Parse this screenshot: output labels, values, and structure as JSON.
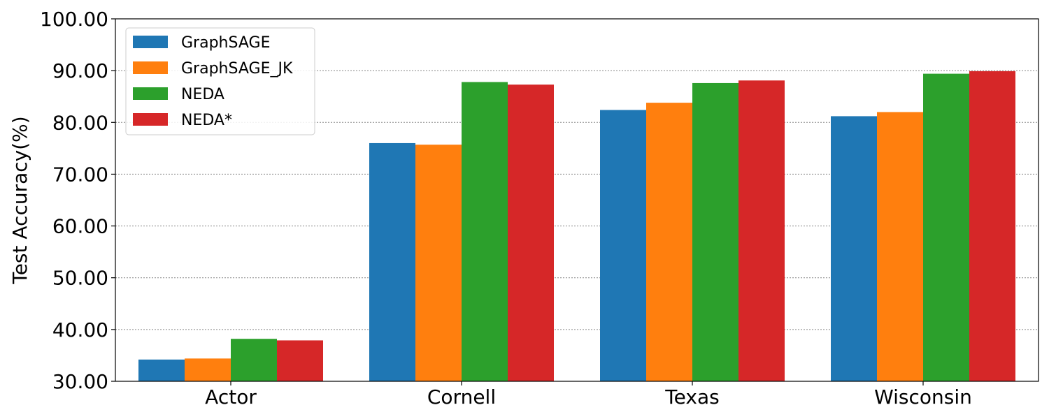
{
  "chart_data": {
    "type": "bar",
    "title": "",
    "xlabel": "",
    "ylabel": "Test Accuracy(%)",
    "ylim": [
      30,
      100
    ],
    "yticks": [
      "30.00",
      "40.00",
      "50.00",
      "60.00",
      "70.00",
      "80.00",
      "90.00",
      "100.00"
    ],
    "categories": [
      "Actor",
      "Cornell",
      "Texas",
      "Wisconsin"
    ],
    "grid": "horizontal dotted",
    "legend_position": "top-left",
    "series": [
      {
        "name": "GraphSAGE",
        "color": "#1f77b4",
        "values": [
          34.2,
          76.0,
          82.4,
          81.2
        ]
      },
      {
        "name": "GraphSAGE_JK",
        "color": "#ff7f0e",
        "values": [
          34.4,
          75.7,
          83.8,
          82.0
        ]
      },
      {
        "name": "NEDA",
        "color": "#2ca02c",
        "values": [
          38.2,
          87.8,
          87.6,
          89.4
        ]
      },
      {
        "name": "NEDA*",
        "color": "#d62728",
        "values": [
          37.9,
          87.3,
          88.1,
          89.9
        ]
      }
    ]
  }
}
